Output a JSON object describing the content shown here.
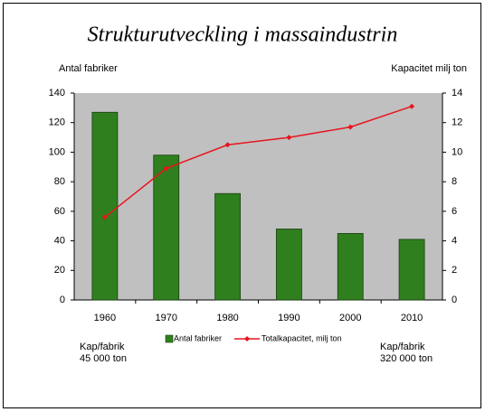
{
  "chart_data": {
    "type": "bar_line",
    "title": "Strukturutveckling i massaindustrin",
    "y_label": "Antal fabriker",
    "y2_label": "Kapacitet milj ton",
    "categories": [
      "1960",
      "1970",
      "1980",
      "1990",
      "2000",
      "2010"
    ],
    "series": [
      {
        "name": "Antal fabriker",
        "type": "bar",
        "color": "#2f7f1f",
        "values": [
          127,
          98,
          72,
          48,
          45,
          41
        ]
      },
      {
        "name": "Totalkapacitet, milj ton",
        "type": "line",
        "axis": "y2",
        "color": "#e8141e",
        "values": [
          5.6,
          8.9,
          10.5,
          11.0,
          11.7,
          13.1
        ]
      }
    ],
    "ylim": [
      0,
      140
    ],
    "yticks": [
      0,
      20,
      40,
      60,
      80,
      100,
      120,
      140
    ],
    "y2lim": [
      0,
      14
    ],
    "y2ticks": [
      0,
      2,
      4,
      6,
      8,
      10,
      12,
      14
    ],
    "grid": false,
    "plot_background": "#c0c0c0",
    "legend": "bottom",
    "annotations": [
      {
        "lines": [
          "Kap/fabrik",
          "45 000 ton"
        ]
      },
      {
        "lines": [
          "Kap/fabrik",
          "320 000 ton"
        ]
      }
    ]
  }
}
